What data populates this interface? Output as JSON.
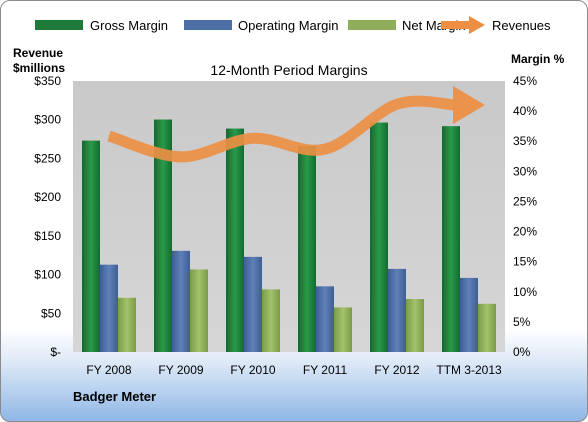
{
  "chart_data": {
    "type": "bar",
    "title": "12-Month Period Margins",
    "company": "Badger Meter",
    "left_axis_label": [
      "Revenue",
      "$millions"
    ],
    "right_axis_label": "Margin %",
    "categories": [
      "FY 2008",
      "FY 2009",
      "FY 2010",
      "FY 2011",
      "FY 2012",
      "TTM 3-2013"
    ],
    "left_ticks": [
      "$-",
      "$50",
      "$100",
      "$150",
      "$200",
      "$250",
      "$300",
      "$350"
    ],
    "right_ticks": [
      "0%",
      "5%",
      "10%",
      "15%",
      "20%",
      "25%",
      "30%",
      "35%",
      "40%",
      "45%"
    ],
    "ylim_left": [
      0,
      350
    ],
    "ylim_right": [
      0,
      45
    ],
    "grid": false,
    "legend_position": "top",
    "series": [
      {
        "name": "Gross Margin",
        "axis": "right",
        "color": "#1f7a3a",
        "values": [
          35.1,
          38.6,
          37.1,
          34.2,
          38.1,
          37.5
        ]
      },
      {
        "name": "Operating Margin",
        "axis": "right",
        "color": "#4e6fa6",
        "values": [
          14.5,
          16.8,
          15.8,
          10.9,
          13.8,
          12.3
        ]
      },
      {
        "name": "Net Margin",
        "axis": "right",
        "color": "#8fae5a",
        "values": [
          9.0,
          13.7,
          10.4,
          7.4,
          8.8,
          8.0
        ]
      }
    ],
    "line_series": {
      "name": "Revenues",
      "axis": "left",
      "color": "#ec8f44",
      "values": [
        279,
        252,
        276,
        262,
        320,
        319
      ]
    }
  }
}
